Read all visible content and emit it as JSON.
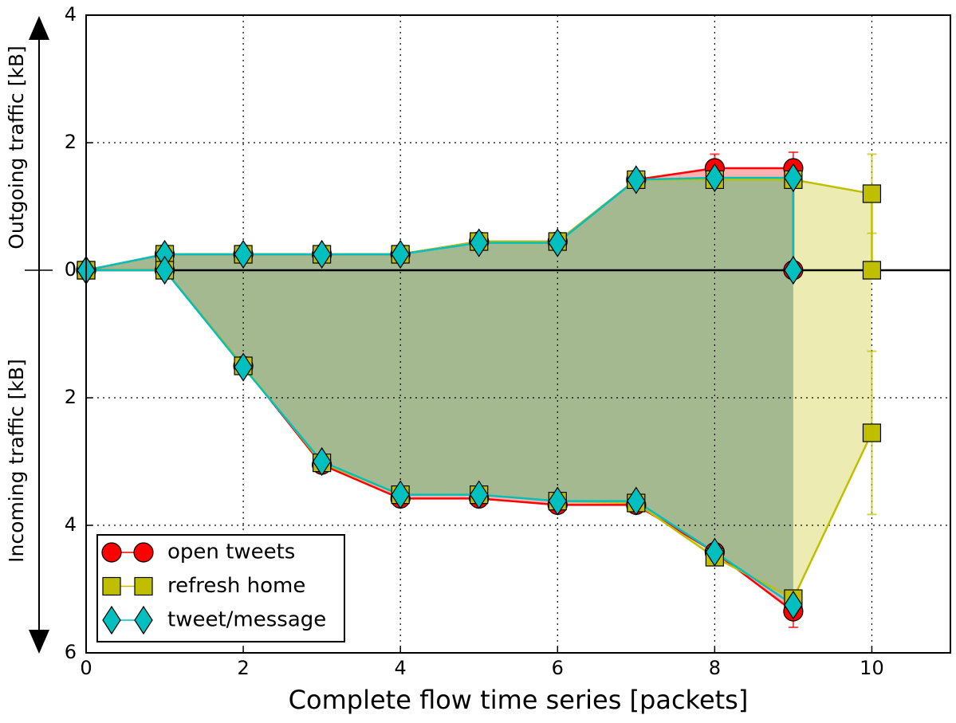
{
  "chart_data": {
    "type": "line",
    "xlabel": "Complete flow time series [packets]",
    "ylabel_top": "Outgoing traffic [kB]",
    "ylabel_bottom": "Incoming traffic [kB]",
    "xlim": [
      0,
      11
    ],
    "ylim": [
      -6,
      4
    ],
    "xticks": [
      0,
      2,
      4,
      6,
      8,
      10
    ],
    "yticks": [
      4,
      2,
      0,
      {
        "value": -2,
        "label": "2"
      },
      {
        "value": -4,
        "label": "4"
      },
      {
        "value": -6,
        "label": "6"
      }
    ],
    "grid": true,
    "legend": "lower left",
    "series": [
      {
        "name": "open tweets",
        "color": "#ff0000",
        "marker": "circle",
        "x": [
          0,
          1,
          2,
          3,
          4,
          5,
          6,
          7,
          8,
          9,
          9
        ],
        "values": [
          0,
          0.25,
          0.25,
          0.25,
          0.25,
          0.45,
          0.45,
          1.42,
          1.6,
          1.6,
          0
        ],
        "errors": [
          null,
          null,
          null,
          null,
          null,
          null,
          null,
          null,
          0.22,
          0.25,
          null
        ],
        "x_in": [
          0,
          1,
          2,
          3,
          4,
          5,
          6,
          7,
          8,
          9
        ],
        "incoming": [
          0,
          0,
          -1.5,
          -3.05,
          -3.58,
          -3.58,
          -3.68,
          -3.68,
          -4.42,
          -5.35
        ],
        "incoming_errors": [
          null,
          null,
          null,
          null,
          null,
          null,
          null,
          null,
          null,
          0.25
        ]
      },
      {
        "name": "refresh home",
        "color": "#bfbf00",
        "marker": "square",
        "x": [
          0,
          1,
          2,
          3,
          4,
          5,
          6,
          7,
          8,
          9,
          10,
          10
        ],
        "values": [
          0,
          0.25,
          0.25,
          0.25,
          0.25,
          0.45,
          0.45,
          1.42,
          1.42,
          1.42,
          1.2,
          0
        ],
        "errors": [
          null,
          null,
          null,
          null,
          null,
          null,
          null,
          null,
          null,
          null,
          0.62,
          null
        ],
        "x_in": [
          0,
          1,
          2,
          3,
          4,
          5,
          6,
          7,
          8,
          9,
          10
        ],
        "incoming": [
          0,
          0,
          -1.5,
          -3.02,
          -3.52,
          -3.52,
          -3.62,
          -3.65,
          -4.5,
          -5.15,
          -2.55
        ],
        "incoming_errors": [
          null,
          null,
          null,
          null,
          null,
          null,
          null,
          null,
          null,
          null,
          1.28
        ]
      },
      {
        "name": "tweet/message",
        "color": "#00bfbf",
        "marker": "diamond",
        "x": [
          0,
          1,
          2,
          3,
          4,
          5,
          6,
          7,
          8,
          9,
          9
        ],
        "values": [
          0,
          0.25,
          0.25,
          0.25,
          0.25,
          0.43,
          0.43,
          1.42,
          1.45,
          1.45,
          0
        ],
        "errors": [
          null,
          null,
          null,
          null,
          null,
          null,
          null,
          null,
          null,
          null,
          null
        ],
        "x_in": [
          0,
          1,
          2,
          3,
          4,
          5,
          6,
          7,
          8,
          9
        ],
        "incoming": [
          0,
          0,
          -1.52,
          -3.0,
          -3.52,
          -3.52,
          -3.62,
          -3.62,
          -4.42,
          -5.25
        ],
        "incoming_errors": [
          null,
          null,
          null,
          null,
          null,
          null,
          null,
          null,
          null,
          null
        ]
      }
    ]
  }
}
